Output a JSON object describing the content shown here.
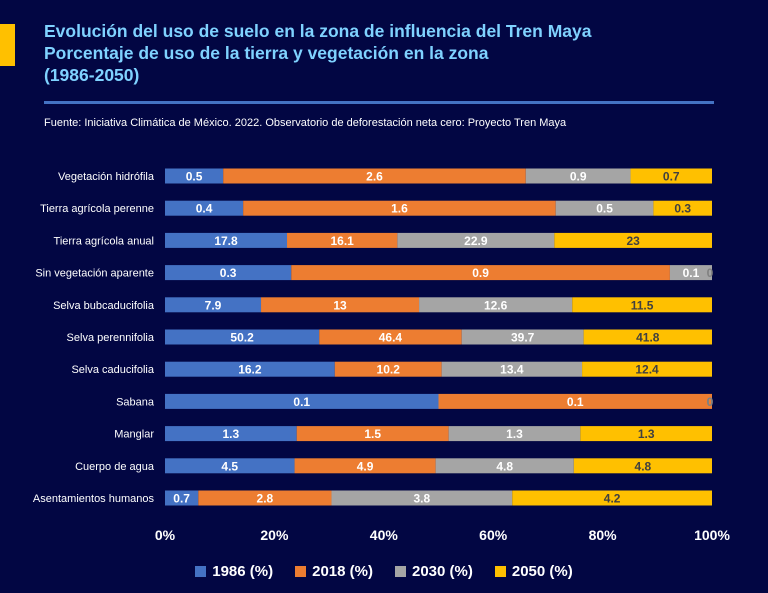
{
  "header": {
    "title_lines": [
      "Evolución del uso de suelo en la zona de influencia del Tren Maya",
      "Porcentaje de uso de la tierra y vegetación en la zona",
      "(1986-2050)"
    ],
    "source": "Fuente: Iniciativa Climática de México. 2022. Observatorio de deforestación neta cero: Proyecto Tren Maya"
  },
  "colors": {
    "background": "#020643",
    "title": "#7FD2FF",
    "accent": "#FFC000",
    "rule": "#4472C4"
  },
  "chart_data": {
    "type": "bar",
    "orientation": "horizontal",
    "stacked": "percent",
    "categories": [
      "Vegetación hidrófila",
      "Tierra agrícola perenne",
      "Tierra agrícola anual",
      "Sin vegetación aparente",
      "Selva bubcaducifolia",
      "Selva perennifolia",
      "Selva caducifolia",
      "Sabana",
      "Manglar",
      "Cuerpo de agua",
      "Asentamientos humanos"
    ],
    "series": [
      {
        "name": "1986 (%)",
        "color": "#4472C4",
        "label_color": "#FFFFFF",
        "values": [
          0.5,
          0.4,
          17.8,
          0.3,
          7.9,
          50.2,
          16.2,
          0.1,
          1.3,
          4.5,
          0.7
        ]
      },
      {
        "name": "2018 (%)",
        "color": "#ED7D31",
        "label_color": "#FFFFFF",
        "values": [
          2.6,
          1.6,
          16.1,
          0.9,
          13,
          46.4,
          10.2,
          0.1,
          1.5,
          4.9,
          2.8
        ]
      },
      {
        "name": "2030 (%)",
        "color": "#A5A5A5",
        "label_color": "#FFFFFF",
        "values": [
          0.9,
          0.5,
          22.9,
          0.1,
          12.6,
          39.7,
          13.4,
          0,
          1.3,
          4.8,
          3.8
        ]
      },
      {
        "name": "2050 (%)",
        "color": "#FFC000",
        "label_color": "#404040",
        "values": [
          0.7,
          0.3,
          23,
          0,
          11.5,
          41.8,
          12.4,
          0,
          1.3,
          4.8,
          4.2
        ]
      }
    ],
    "xaxis": {
      "ticks": [
        "0%",
        "20%",
        "40%",
        "60%",
        "80%",
        "100%"
      ],
      "range": [
        0,
        100
      ]
    },
    "gridlines": false,
    "legend_position": "bottom"
  }
}
